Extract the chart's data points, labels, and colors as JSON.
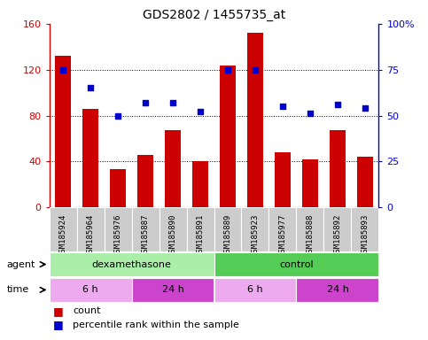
{
  "title": "GDS2802 / 1455735_at",
  "samples": [
    "GSM185924",
    "GSM185964",
    "GSM185976",
    "GSM185887",
    "GSM185890",
    "GSM185891",
    "GSM185889",
    "GSM185923",
    "GSM185977",
    "GSM185888",
    "GSM185892",
    "GSM185893"
  ],
  "counts": [
    132,
    86,
    33,
    46,
    67,
    40,
    124,
    152,
    48,
    42,
    67,
    44
  ],
  "percentiles": [
    75,
    65,
    50,
    57,
    57,
    52,
    75,
    75,
    55,
    51,
    56,
    54
  ],
  "bar_color": "#cc0000",
  "dot_color": "#0000cc",
  "ylim_left": [
    0,
    160
  ],
  "ylim_right": [
    0,
    100
  ],
  "yticks_left": [
    0,
    40,
    80,
    120,
    160
  ],
  "ytick_labels_left": [
    "0",
    "40",
    "80",
    "120",
    "160"
  ],
  "yticks_right": [
    0,
    25,
    50,
    75,
    100
  ],
  "ytick_labels_right": [
    "0",
    "25",
    "50",
    "75",
    "100%"
  ],
  "grid_lines": [
    40,
    80,
    120
  ],
  "agent_groups": [
    {
      "label": "dexamethasone",
      "start": 0,
      "end": 6,
      "color": "#aaeeaa"
    },
    {
      "label": "control",
      "start": 6,
      "end": 12,
      "color": "#55cc55"
    }
  ],
  "time_groups": [
    {
      "label": "6 h",
      "start": 0,
      "end": 3,
      "color": "#eeaaee"
    },
    {
      "label": "24 h",
      "start": 3,
      "end": 6,
      "color": "#cc44cc"
    },
    {
      "label": "6 h",
      "start": 6,
      "end": 9,
      "color": "#eeaaee"
    },
    {
      "label": "24 h",
      "start": 9,
      "end": 12,
      "color": "#cc44cc"
    }
  ],
  "legend_count_color": "#cc0000",
  "legend_dot_color": "#0000cc",
  "tick_label_bg": "#cccccc",
  "label_agent": "agent",
  "label_time": "time"
}
